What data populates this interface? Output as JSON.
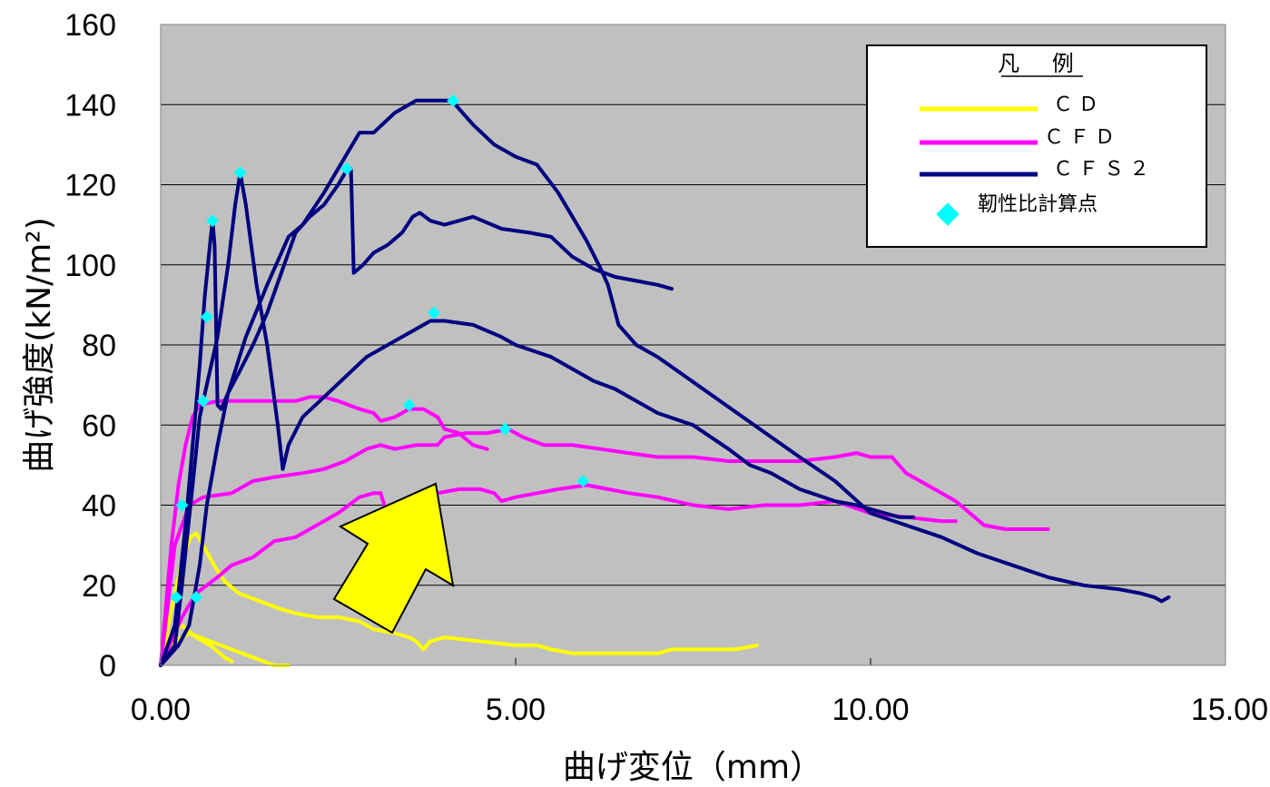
{
  "chart_data": {
    "type": "line",
    "title": "",
    "xlabel": "曲げ変位（mm）",
    "ylabel": "曲げ強度(kN/m²)",
    "xlim": [
      0,
      15
    ],
    "ylim": [
      0,
      160
    ],
    "x_ticks": [
      "0.00",
      "5.00",
      "10.00",
      "15.00"
    ],
    "y_ticks": [
      "0",
      "20",
      "40",
      "60",
      "80",
      "100",
      "120",
      "140",
      "160"
    ],
    "grid": "horizontal",
    "legend_position": "top-right",
    "legend_title": "凡 例",
    "colors": {
      "CD": "#ffff00",
      "CFD": "#ff00ff",
      "CFS2": "#000080",
      "marker": "#00ffff",
      "plot_bg": "#c0c0c0",
      "arrow": "#ffff00"
    },
    "series": [
      {
        "name": "ＣＤ",
        "group": "CD",
        "points": [
          [
            0,
            0
          ],
          [
            0.15,
            14
          ],
          [
            0.3,
            26
          ],
          [
            0.42,
            32
          ],
          [
            0.5,
            33
          ],
          [
            0.6,
            30
          ],
          [
            0.75,
            25
          ],
          [
            0.9,
            21
          ],
          [
            1.1,
            18
          ],
          [
            1.4,
            16
          ],
          [
            1.7,
            14
          ],
          [
            1.9,
            13
          ],
          [
            2.2,
            12
          ],
          [
            2.5,
            12
          ],
          [
            2.8,
            11
          ],
          [
            3.0,
            9
          ],
          [
            3.3,
            8
          ],
          [
            3.5,
            7
          ],
          [
            3.6,
            6
          ],
          [
            3.7,
            4
          ],
          [
            3.8,
            6
          ],
          [
            4.0,
            7
          ],
          [
            4.5,
            6
          ],
          [
            5.0,
            5
          ],
          [
            5.3,
            5
          ],
          [
            5.5,
            4
          ],
          [
            5.8,
            3
          ],
          [
            6.2,
            3
          ],
          [
            6.7,
            3
          ],
          [
            7.0,
            3
          ],
          [
            7.2,
            4
          ],
          [
            7.5,
            4
          ],
          [
            7.8,
            4
          ],
          [
            8.1,
            4
          ],
          [
            8.4,
            5
          ]
        ]
      },
      {
        "name": "ＣＤ",
        "group": "CD",
        "points": [
          [
            0,
            0
          ],
          [
            0.15,
            8
          ],
          [
            0.3,
            10
          ],
          [
            0.5,
            7
          ],
          [
            0.7,
            5
          ],
          [
            0.9,
            2
          ],
          [
            1.0,
            1
          ]
        ]
      },
      {
        "name": "ＣＤ",
        "group": "CD",
        "points": [
          [
            0,
            0
          ],
          [
            0.2,
            6
          ],
          [
            0.4,
            8
          ],
          [
            0.7,
            6
          ],
          [
            1.0,
            4
          ],
          [
            1.3,
            2
          ],
          [
            1.6,
            0
          ],
          [
            1.8,
            0
          ]
        ]
      },
      {
        "name": "ＣＦＤ",
        "group": "CFD",
        "points": [
          [
            0,
            0
          ],
          [
            0.15,
            30
          ],
          [
            0.25,
            45
          ],
          [
            0.35,
            55
          ],
          [
            0.45,
            62
          ],
          [
            0.55,
            65
          ],
          [
            0.8,
            66
          ],
          [
            1.0,
            66
          ],
          [
            1.5,
            66
          ],
          [
            1.9,
            66
          ],
          [
            2.1,
            67
          ],
          [
            2.3,
            67
          ],
          [
            2.5,
            66
          ],
          [
            2.8,
            64
          ],
          [
            3.0,
            63
          ],
          [
            3.1,
            61
          ],
          [
            3.3,
            62
          ],
          [
            3.5,
            64
          ],
          [
            3.7,
            64
          ],
          [
            3.9,
            62
          ],
          [
            4.0,
            59
          ],
          [
            4.2,
            58
          ],
          [
            4.4,
            55
          ],
          [
            4.6,
            54
          ]
        ]
      },
      {
        "name": "ＣＦＤ",
        "group": "CFD",
        "points": [
          [
            0,
            0
          ],
          [
            0.2,
            30
          ],
          [
            0.4,
            40
          ],
          [
            0.6,
            42
          ],
          [
            1.0,
            43
          ],
          [
            1.3,
            46
          ],
          [
            1.6,
            47
          ],
          [
            2.0,
            48
          ],
          [
            2.3,
            49
          ],
          [
            2.6,
            51
          ],
          [
            2.9,
            54
          ],
          [
            3.1,
            55
          ],
          [
            3.3,
            54
          ],
          [
            3.6,
            55
          ],
          [
            3.9,
            55
          ],
          [
            4.0,
            57
          ],
          [
            4.3,
            58
          ],
          [
            4.6,
            58
          ],
          [
            4.9,
            59
          ],
          [
            5.1,
            57
          ],
          [
            5.4,
            55
          ],
          [
            5.8,
            55
          ],
          [
            6.2,
            54
          ],
          [
            6.6,
            53
          ],
          [
            7.0,
            52
          ],
          [
            7.5,
            52
          ],
          [
            8.0,
            51
          ],
          [
            8.5,
            51
          ],
          [
            9.0,
            51
          ],
          [
            9.5,
            52
          ],
          [
            9.8,
            53
          ],
          [
            10.0,
            52
          ],
          [
            10.3,
            52
          ],
          [
            10.5,
            48
          ],
          [
            10.7,
            46
          ],
          [
            11.0,
            43
          ],
          [
            11.2,
            41
          ],
          [
            11.4,
            38
          ],
          [
            11.6,
            35
          ],
          [
            11.9,
            34
          ],
          [
            12.2,
            34
          ],
          [
            12.5,
            34
          ]
        ]
      },
      {
        "name": "ＣＦＤ",
        "group": "CFD",
        "points": [
          [
            0,
            0
          ],
          [
            0.3,
            12
          ],
          [
            0.5,
            18
          ],
          [
            0.8,
            22
          ],
          [
            1.0,
            25
          ],
          [
            1.3,
            27
          ],
          [
            1.6,
            31
          ],
          [
            1.9,
            32
          ],
          [
            2.2,
            35
          ],
          [
            2.5,
            38
          ],
          [
            2.8,
            42
          ],
          [
            3.0,
            43
          ],
          [
            3.1,
            43
          ],
          [
            3.2,
            37
          ],
          [
            3.35,
            37
          ],
          [
            3.6,
            41
          ],
          [
            3.9,
            43
          ],
          [
            4.2,
            44
          ],
          [
            4.5,
            44
          ],
          [
            4.7,
            43
          ],
          [
            4.8,
            41
          ],
          [
            5.0,
            42
          ],
          [
            5.3,
            43
          ],
          [
            5.6,
            44
          ],
          [
            6.0,
            45
          ],
          [
            6.3,
            44
          ],
          [
            6.6,
            43
          ],
          [
            7.0,
            42
          ],
          [
            7.5,
            40
          ],
          [
            8.0,
            39
          ],
          [
            8.5,
            40
          ],
          [
            9.0,
            40
          ],
          [
            9.5,
            41
          ],
          [
            10.0,
            38
          ],
          [
            10.5,
            37
          ],
          [
            11.0,
            36
          ],
          [
            11.2,
            36
          ]
        ]
      },
      {
        "name": "ＣＦＳ２",
        "group": "CFS2",
        "points": [
          [
            0,
            0
          ],
          [
            0.2,
            10
          ],
          [
            0.35,
            35
          ],
          [
            0.45,
            55
          ],
          [
            0.55,
            75
          ],
          [
            0.62,
            92
          ],
          [
            0.7,
            106
          ],
          [
            0.73,
            111
          ],
          [
            0.76,
            105
          ],
          [
            0.8,
            65
          ],
          [
            0.85,
            64
          ],
          [
            0.95,
            68
          ],
          [
            1.1,
            73
          ],
          [
            1.3,
            80
          ],
          [
            1.5,
            88
          ],
          [
            1.7,
            98
          ],
          [
            1.9,
            108
          ],
          [
            2.1,
            112
          ],
          [
            2.3,
            115
          ],
          [
            2.5,
            120
          ],
          [
            2.6,
            123
          ],
          [
            2.68,
            124
          ],
          [
            2.72,
            98
          ],
          [
            2.85,
            100
          ],
          [
            3.0,
            103
          ],
          [
            3.2,
            105
          ],
          [
            3.4,
            108
          ],
          [
            3.55,
            112
          ],
          [
            3.65,
            113
          ],
          [
            3.8,
            111
          ],
          [
            4.0,
            110
          ],
          [
            4.4,
            112
          ],
          [
            4.8,
            109
          ],
          [
            5.2,
            108
          ],
          [
            5.5,
            107
          ],
          [
            5.8,
            102
          ],
          [
            6.1,
            99
          ],
          [
            6.4,
            97
          ],
          [
            6.7,
            96
          ],
          [
            7.0,
            95
          ],
          [
            7.2,
            94
          ]
        ]
      },
      {
        "name": "ＣＦＳ２",
        "group": "CFS2",
        "points": [
          [
            0,
            0
          ],
          [
            0.2,
            5
          ],
          [
            0.3,
            20
          ],
          [
            0.45,
            45
          ],
          [
            0.55,
            62
          ],
          [
            0.65,
            70
          ],
          [
            0.8,
            82
          ],
          [
            0.95,
            100
          ],
          [
            1.05,
            115
          ],
          [
            1.12,
            123
          ],
          [
            1.2,
            115
          ],
          [
            1.35,
            95
          ],
          [
            1.5,
            80
          ],
          [
            1.65,
            60
          ],
          [
            1.72,
            49
          ],
          [
            1.8,
            55
          ],
          [
            2.0,
            62
          ],
          [
            2.3,
            67
          ],
          [
            2.6,
            72
          ],
          [
            2.9,
            77
          ],
          [
            3.2,
            80
          ],
          [
            3.5,
            83
          ],
          [
            3.8,
            86
          ],
          [
            4.0,
            86
          ],
          [
            4.4,
            85
          ],
          [
            4.8,
            82
          ],
          [
            5.0,
            80
          ],
          [
            5.5,
            77
          ],
          [
            5.8,
            74
          ],
          [
            6.1,
            71
          ],
          [
            6.4,
            69
          ],
          [
            6.7,
            66
          ],
          [
            7.0,
            63
          ],
          [
            7.5,
            60
          ],
          [
            8.0,
            54
          ],
          [
            8.3,
            50
          ],
          [
            8.6,
            48
          ],
          [
            9.0,
            44
          ],
          [
            9.5,
            41
          ],
          [
            9.8,
            40
          ],
          [
            10.2,
            38
          ],
          [
            10.4,
            37
          ],
          [
            10.6,
            37
          ]
        ]
      },
      {
        "name": "ＣＦＳ２",
        "group": "CFS2",
        "points": [
          [
            0,
            0
          ],
          [
            0.25,
            5
          ],
          [
            0.4,
            10
          ],
          [
            0.55,
            25
          ],
          [
            0.65,
            40
          ],
          [
            0.8,
            55
          ],
          [
            0.95,
            68
          ],
          [
            1.2,
            82
          ],
          [
            1.5,
            95
          ],
          [
            1.8,
            107
          ],
          [
            2.0,
            110
          ],
          [
            2.3,
            118
          ],
          [
            2.6,
            127
          ],
          [
            2.8,
            133
          ],
          [
            3.0,
            133
          ],
          [
            3.3,
            138
          ],
          [
            3.6,
            141
          ],
          [
            3.9,
            141
          ],
          [
            4.1,
            141
          ],
          [
            4.4,
            135
          ],
          [
            4.7,
            130
          ],
          [
            5.0,
            127
          ],
          [
            5.3,
            125
          ],
          [
            5.6,
            118
          ],
          [
            5.8,
            112
          ],
          [
            6.0,
            106
          ],
          [
            6.2,
            99
          ],
          [
            6.3,
            95
          ],
          [
            6.45,
            85
          ],
          [
            6.7,
            80
          ],
          [
            7.0,
            77
          ],
          [
            7.4,
            72
          ],
          [
            7.8,
            67
          ],
          [
            8.2,
            62
          ],
          [
            8.6,
            57
          ],
          [
            9.0,
            52
          ],
          [
            9.5,
            46
          ],
          [
            10.0,
            38
          ],
          [
            10.5,
            35
          ],
          [
            11.0,
            32
          ],
          [
            11.5,
            28
          ],
          [
            12.0,
            25
          ],
          [
            12.5,
            22
          ],
          [
            13.0,
            20
          ],
          [
            13.5,
            19
          ],
          [
            13.8,
            18
          ],
          [
            14.0,
            17
          ],
          [
            14.1,
            16
          ],
          [
            14.2,
            17
          ]
        ]
      }
    ],
    "markers": {
      "name": "靭性比計算点",
      "points": [
        [
          0.22,
          17
        ],
        [
          0.3,
          40
        ],
        [
          0.6,
          66
        ],
        [
          0.65,
          87
        ],
        [
          0.73,
          111
        ],
        [
          1.12,
          123
        ],
        [
          2.62,
          124
        ],
        [
          4.12,
          141
        ],
        [
          3.85,
          88
        ],
        [
          3.5,
          65
        ],
        [
          4.85,
          59
        ],
        [
          5.95,
          46
        ],
        [
          0.5,
          17
        ]
      ]
    },
    "annotation": {
      "type": "arrow",
      "direction": "up-right",
      "color": "#ffff00"
    }
  }
}
